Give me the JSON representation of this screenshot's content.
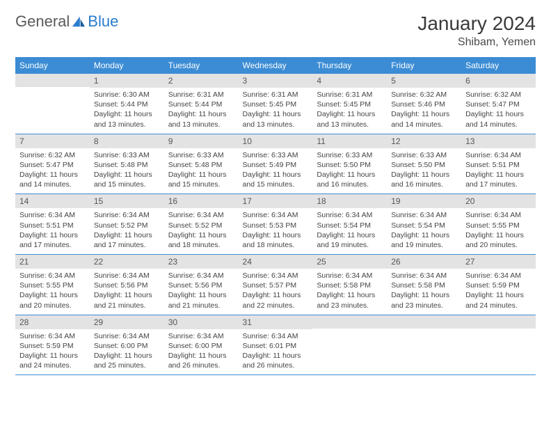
{
  "brand": {
    "part1": "General",
    "part2": "Blue"
  },
  "title": "January 2024",
  "location": "Shibam, Yemen",
  "colors": {
    "header_bg": "#3b8cd4",
    "header_text": "#ffffff",
    "daynum_bg": "#e3e3e3",
    "border": "#3b8cd4",
    "logo_blue": "#2a7ccc",
    "text": "#444444"
  },
  "weekdays": [
    "Sunday",
    "Monday",
    "Tuesday",
    "Wednesday",
    "Thursday",
    "Friday",
    "Saturday"
  ],
  "weeks": [
    [
      {
        "n": "",
        "lines": []
      },
      {
        "n": "1",
        "lines": [
          "Sunrise: 6:30 AM",
          "Sunset: 5:44 PM",
          "Daylight: 11 hours",
          "and 13 minutes."
        ]
      },
      {
        "n": "2",
        "lines": [
          "Sunrise: 6:31 AM",
          "Sunset: 5:44 PM",
          "Daylight: 11 hours",
          "and 13 minutes."
        ]
      },
      {
        "n": "3",
        "lines": [
          "Sunrise: 6:31 AM",
          "Sunset: 5:45 PM",
          "Daylight: 11 hours",
          "and 13 minutes."
        ]
      },
      {
        "n": "4",
        "lines": [
          "Sunrise: 6:31 AM",
          "Sunset: 5:45 PM",
          "Daylight: 11 hours",
          "and 13 minutes."
        ]
      },
      {
        "n": "5",
        "lines": [
          "Sunrise: 6:32 AM",
          "Sunset: 5:46 PM",
          "Daylight: 11 hours",
          "and 14 minutes."
        ]
      },
      {
        "n": "6",
        "lines": [
          "Sunrise: 6:32 AM",
          "Sunset: 5:47 PM",
          "Daylight: 11 hours",
          "and 14 minutes."
        ]
      }
    ],
    [
      {
        "n": "7",
        "lines": [
          "Sunrise: 6:32 AM",
          "Sunset: 5:47 PM",
          "Daylight: 11 hours",
          "and 14 minutes."
        ]
      },
      {
        "n": "8",
        "lines": [
          "Sunrise: 6:33 AM",
          "Sunset: 5:48 PM",
          "Daylight: 11 hours",
          "and 15 minutes."
        ]
      },
      {
        "n": "9",
        "lines": [
          "Sunrise: 6:33 AM",
          "Sunset: 5:48 PM",
          "Daylight: 11 hours",
          "and 15 minutes."
        ]
      },
      {
        "n": "10",
        "lines": [
          "Sunrise: 6:33 AM",
          "Sunset: 5:49 PM",
          "Daylight: 11 hours",
          "and 15 minutes."
        ]
      },
      {
        "n": "11",
        "lines": [
          "Sunrise: 6:33 AM",
          "Sunset: 5:50 PM",
          "Daylight: 11 hours",
          "and 16 minutes."
        ]
      },
      {
        "n": "12",
        "lines": [
          "Sunrise: 6:33 AM",
          "Sunset: 5:50 PM",
          "Daylight: 11 hours",
          "and 16 minutes."
        ]
      },
      {
        "n": "13",
        "lines": [
          "Sunrise: 6:34 AM",
          "Sunset: 5:51 PM",
          "Daylight: 11 hours",
          "and 17 minutes."
        ]
      }
    ],
    [
      {
        "n": "14",
        "lines": [
          "Sunrise: 6:34 AM",
          "Sunset: 5:51 PM",
          "Daylight: 11 hours",
          "and 17 minutes."
        ]
      },
      {
        "n": "15",
        "lines": [
          "Sunrise: 6:34 AM",
          "Sunset: 5:52 PM",
          "Daylight: 11 hours",
          "and 17 minutes."
        ]
      },
      {
        "n": "16",
        "lines": [
          "Sunrise: 6:34 AM",
          "Sunset: 5:52 PM",
          "Daylight: 11 hours",
          "and 18 minutes."
        ]
      },
      {
        "n": "17",
        "lines": [
          "Sunrise: 6:34 AM",
          "Sunset: 5:53 PM",
          "Daylight: 11 hours",
          "and 18 minutes."
        ]
      },
      {
        "n": "18",
        "lines": [
          "Sunrise: 6:34 AM",
          "Sunset: 5:54 PM",
          "Daylight: 11 hours",
          "and 19 minutes."
        ]
      },
      {
        "n": "19",
        "lines": [
          "Sunrise: 6:34 AM",
          "Sunset: 5:54 PM",
          "Daylight: 11 hours",
          "and 19 minutes."
        ]
      },
      {
        "n": "20",
        "lines": [
          "Sunrise: 6:34 AM",
          "Sunset: 5:55 PM",
          "Daylight: 11 hours",
          "and 20 minutes."
        ]
      }
    ],
    [
      {
        "n": "21",
        "lines": [
          "Sunrise: 6:34 AM",
          "Sunset: 5:55 PM",
          "Daylight: 11 hours",
          "and 20 minutes."
        ]
      },
      {
        "n": "22",
        "lines": [
          "Sunrise: 6:34 AM",
          "Sunset: 5:56 PM",
          "Daylight: 11 hours",
          "and 21 minutes."
        ]
      },
      {
        "n": "23",
        "lines": [
          "Sunrise: 6:34 AM",
          "Sunset: 5:56 PM",
          "Daylight: 11 hours",
          "and 21 minutes."
        ]
      },
      {
        "n": "24",
        "lines": [
          "Sunrise: 6:34 AM",
          "Sunset: 5:57 PM",
          "Daylight: 11 hours",
          "and 22 minutes."
        ]
      },
      {
        "n": "25",
        "lines": [
          "Sunrise: 6:34 AM",
          "Sunset: 5:58 PM",
          "Daylight: 11 hours",
          "and 23 minutes."
        ]
      },
      {
        "n": "26",
        "lines": [
          "Sunrise: 6:34 AM",
          "Sunset: 5:58 PM",
          "Daylight: 11 hours",
          "and 23 minutes."
        ]
      },
      {
        "n": "27",
        "lines": [
          "Sunrise: 6:34 AM",
          "Sunset: 5:59 PM",
          "Daylight: 11 hours",
          "and 24 minutes."
        ]
      }
    ],
    [
      {
        "n": "28",
        "lines": [
          "Sunrise: 6:34 AM",
          "Sunset: 5:59 PM",
          "Daylight: 11 hours",
          "and 24 minutes."
        ]
      },
      {
        "n": "29",
        "lines": [
          "Sunrise: 6:34 AM",
          "Sunset: 6:00 PM",
          "Daylight: 11 hours",
          "and 25 minutes."
        ]
      },
      {
        "n": "30",
        "lines": [
          "Sunrise: 6:34 AM",
          "Sunset: 6:00 PM",
          "Daylight: 11 hours",
          "and 26 minutes."
        ]
      },
      {
        "n": "31",
        "lines": [
          "Sunrise: 6:34 AM",
          "Sunset: 6:01 PM",
          "Daylight: 11 hours",
          "and 26 minutes."
        ]
      },
      {
        "n": "",
        "lines": []
      },
      {
        "n": "",
        "lines": []
      },
      {
        "n": "",
        "lines": []
      }
    ]
  ]
}
